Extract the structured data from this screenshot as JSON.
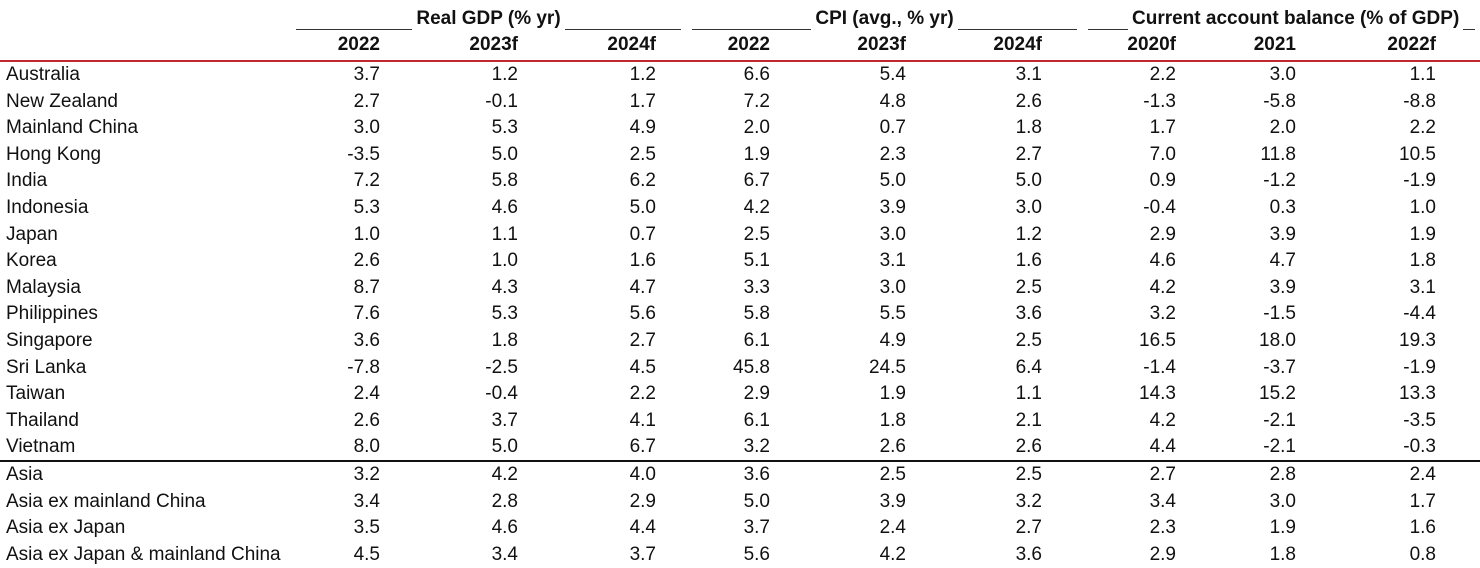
{
  "groups": [
    {
      "title": "Real GDP (% yr)"
    },
    {
      "title": "CPI (avg., % yr)"
    },
    {
      "title": "Current account balance (% of GDP)"
    }
  ],
  "years": [
    "2022",
    "2023f",
    "2024f",
    "2022",
    "2023f",
    "2024f",
    "2020f",
    "2021",
    "2022f"
  ],
  "rows": [
    {
      "label": "Australia",
      "values": [
        "3.7",
        "1.2",
        "1.2",
        "6.6",
        "5.4",
        "3.1",
        "2.2",
        "3.0",
        "1.1"
      ]
    },
    {
      "label": "New Zealand",
      "values": [
        "2.7",
        "-0.1",
        "1.7",
        "7.2",
        "4.8",
        "2.6",
        "-1.3",
        "-5.8",
        "-8.8"
      ]
    },
    {
      "label": "Mainland China",
      "values": [
        "3.0",
        "5.3",
        "4.9",
        "2.0",
        "0.7",
        "1.8",
        "1.7",
        "2.0",
        "2.2"
      ]
    },
    {
      "label": "Hong Kong",
      "values": [
        "-3.5",
        "5.0",
        "2.5",
        "1.9",
        "2.3",
        "2.7",
        "7.0",
        "11.8",
        "10.5"
      ]
    },
    {
      "label": "India",
      "values": [
        "7.2",
        "5.8",
        "6.2",
        "6.7",
        "5.0",
        "5.0",
        "0.9",
        "-1.2",
        "-1.9"
      ]
    },
    {
      "label": "Indonesia",
      "values": [
        "5.3",
        "4.6",
        "5.0",
        "4.2",
        "3.9",
        "3.0",
        "-0.4",
        "0.3",
        "1.0"
      ]
    },
    {
      "label": "Japan",
      "values": [
        "1.0",
        "1.1",
        "0.7",
        "2.5",
        "3.0",
        "1.2",
        "2.9",
        "3.9",
        "1.9"
      ]
    },
    {
      "label": "Korea",
      "values": [
        "2.6",
        "1.0",
        "1.6",
        "5.1",
        "3.1",
        "1.6",
        "4.6",
        "4.7",
        "1.8"
      ]
    },
    {
      "label": "Malaysia",
      "values": [
        "8.7",
        "4.3",
        "4.7",
        "3.3",
        "3.0",
        "2.5",
        "4.2",
        "3.9",
        "3.1"
      ]
    },
    {
      "label": "Philippines",
      "values": [
        "7.6",
        "5.3",
        "5.6",
        "5.8",
        "5.5",
        "3.6",
        "3.2",
        "-1.5",
        "-4.4"
      ]
    },
    {
      "label": "Singapore",
      "values": [
        "3.6",
        "1.8",
        "2.7",
        "6.1",
        "4.9",
        "2.5",
        "16.5",
        "18.0",
        "19.3"
      ]
    },
    {
      "label": "Sri Lanka",
      "values": [
        "-7.8",
        "-2.5",
        "4.5",
        "45.8",
        "24.5",
        "6.4",
        "-1.4",
        "-3.7",
        "-1.9"
      ]
    },
    {
      "label": "Taiwan",
      "values": [
        "2.4",
        "-0.4",
        "2.2",
        "2.9",
        "1.9",
        "1.1",
        "14.3",
        "15.2",
        "13.3"
      ]
    },
    {
      "label": "Thailand",
      "values": [
        "2.6",
        "3.7",
        "4.1",
        "6.1",
        "1.8",
        "2.1",
        "4.2",
        "-2.1",
        "-3.5"
      ]
    },
    {
      "label": "Vietnam",
      "values": [
        "8.0",
        "5.0",
        "6.7",
        "3.2",
        "2.6",
        "2.6",
        "4.4",
        "-2.1",
        "-0.3"
      ]
    },
    {
      "label": "Asia",
      "values": [
        "3.2",
        "4.2",
        "4.0",
        "3.6",
        "2.5",
        "2.5",
        "2.7",
        "2.8",
        "2.4"
      ]
    },
    {
      "label": "Asia ex mainland China",
      "values": [
        "3.4",
        "2.8",
        "2.9",
        "5.0",
        "3.9",
        "3.2",
        "3.4",
        "3.0",
        "1.7"
      ]
    },
    {
      "label": "Asia ex Japan",
      "values": [
        "3.5",
        "4.6",
        "4.4",
        "3.7",
        "2.4",
        "2.7",
        "2.3",
        "1.9",
        "1.6"
      ]
    },
    {
      "label": "Asia ex Japan & mainland China",
      "values": [
        "4.5",
        "3.4",
        "3.7",
        "5.6",
        "4.2",
        "3.6",
        "2.9",
        "1.8",
        "0.8"
      ]
    }
  ],
  "style": {
    "header_rule_color": "#c0282d",
    "aggregate_rule_color": "#111111"
  }
}
